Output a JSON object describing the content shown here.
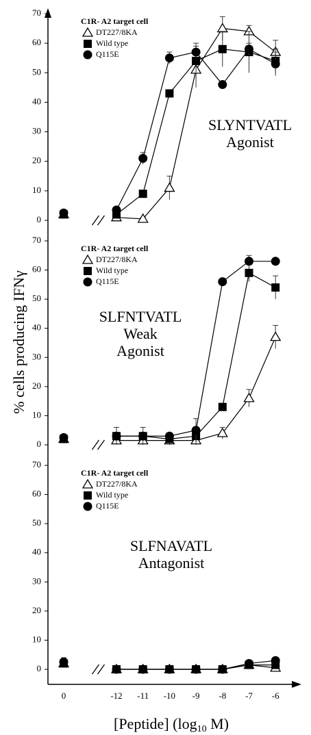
{
  "ylabel": "% cells producing IFNγ",
  "xlabel": {
    "text": "[Peptide] (log",
    "sub": "10",
    "tail": " M)"
  },
  "chart_data": [
    {
      "type": "line",
      "legend_title": "C1R- A2 target cell",
      "annotation": [
        "SLYNTVATL",
        "Agonist"
      ],
      "categories": [
        "0",
        "-12",
        "-11",
        "-10",
        "-9",
        "-8",
        "-7",
        "-6"
      ],
      "x_break": true,
      "ylim": [
        0,
        70
      ],
      "yticks": [
        0,
        10,
        20,
        30,
        40,
        50,
        60,
        70
      ],
      "series": [
        {
          "name": "DT227/8KA",
          "color": "#000000",
          "marker": "triangle-open",
          "values": [
            2,
            1,
            0.5,
            11,
            51,
            65,
            64,
            57
          ],
          "errors": [
            1,
            1,
            0.5,
            4,
            6,
            4,
            2,
            4
          ]
        },
        {
          "name": "Wild type",
          "color": "#000000",
          "marker": "square",
          "values": [
            2,
            2,
            9,
            43,
            54,
            58,
            57,
            54
          ],
          "errors": [
            1,
            1,
            1,
            1,
            6,
            6,
            7,
            4
          ]
        },
        {
          "name": "Q115E",
          "color": "#000000",
          "marker": "circle",
          "values": [
            2.5,
            3.5,
            21,
            55,
            57,
            46,
            58,
            53
          ],
          "errors": [
            1,
            1,
            2,
            2,
            2,
            1,
            2,
            4
          ]
        }
      ]
    },
    {
      "type": "line",
      "legend_title": "C1R- A2 target cell",
      "annotation": [
        "SLFNTVATL",
        "Weak",
        "Agonist"
      ],
      "categories": [
        "0",
        "-12",
        "-11",
        "-10",
        "-9",
        "-8",
        "-7",
        "-6"
      ],
      "x_break": true,
      "ylim": [
        0,
        70
      ],
      "yticks": [
        0,
        10,
        20,
        30,
        40,
        50,
        60,
        70
      ],
      "series": [
        {
          "name": "DT227/8KA",
          "color": "#000000",
          "marker": "triangle-open",
          "values": [
            2,
            1.5,
            1.5,
            1.5,
            1.5,
            4,
            16,
            37
          ],
          "errors": [
            1,
            1,
            1,
            1,
            1,
            2,
            3,
            4
          ]
        },
        {
          "name": "Wild type",
          "color": "#000000",
          "marker": "square",
          "values": [
            2,
            3,
            3,
            2,
            3,
            13,
            59,
            54
          ],
          "errors": [
            1,
            3,
            3,
            2,
            3,
            1,
            3,
            4
          ]
        },
        {
          "name": "Q115E",
          "color": "#000000",
          "marker": "circle",
          "values": [
            2.5,
            3,
            3,
            3,
            5,
            56,
            63,
            63
          ],
          "errors": [
            1,
            1,
            1,
            1,
            4,
            1,
            2,
            1
          ]
        }
      ]
    },
    {
      "type": "line",
      "legend_title": "C1R- A2 target cell",
      "annotation": [
        "SLFNAVATL",
        "Antagonist"
      ],
      "categories": [
        "0",
        "-12",
        "-11",
        "-10",
        "-9",
        "-8",
        "-7",
        "-6"
      ],
      "x_break": true,
      "ylim": [
        0,
        70
      ],
      "yticks": [
        0,
        10,
        20,
        30,
        40,
        50,
        60,
        70
      ],
      "series": [
        {
          "name": "DT227/8KA",
          "color": "#000000",
          "marker": "triangle-open",
          "values": [
            2,
            0,
            0,
            0,
            0,
            0,
            1.5,
            0.5
          ],
          "errors": [
            1,
            0,
            0,
            0,
            0,
            0,
            1,
            1
          ]
        },
        {
          "name": "Wild type",
          "color": "#000000",
          "marker": "square",
          "values": [
            2,
            0,
            0,
            0,
            0,
            0,
            1.5,
            1.5
          ],
          "errors": [
            1,
            0,
            0,
            0,
            0,
            0,
            1,
            1
          ]
        },
        {
          "name": "Q115E",
          "color": "#000000",
          "marker": "circle",
          "values": [
            2.5,
            0,
            0,
            0,
            0,
            0,
            2,
            3
          ],
          "errors": [
            1.5,
            0,
            0,
            0,
            0,
            0,
            1,
            1
          ]
        }
      ]
    }
  ]
}
